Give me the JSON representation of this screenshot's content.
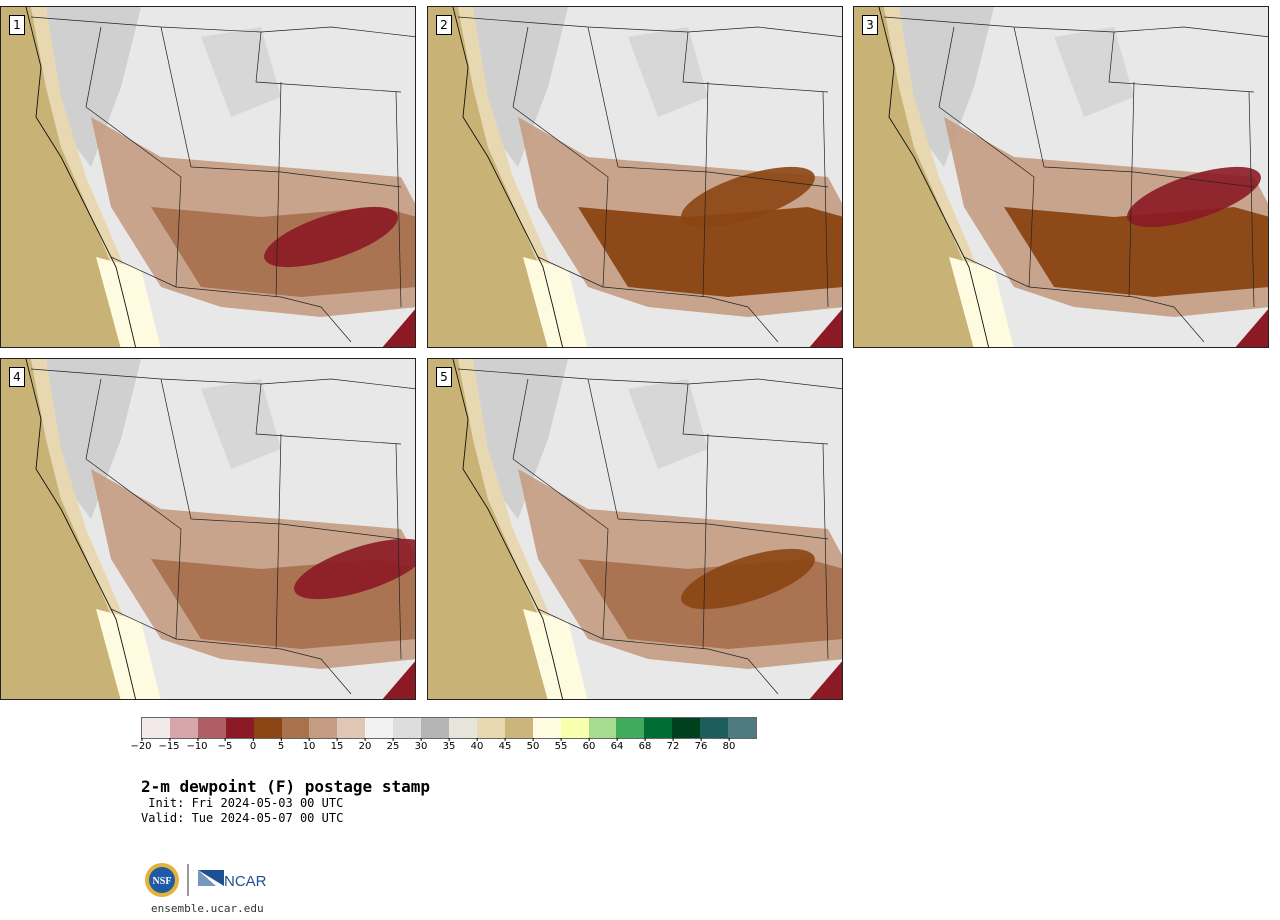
{
  "panels": [
    {
      "label": "1"
    },
    {
      "label": "2"
    },
    {
      "label": "3"
    },
    {
      "label": "4"
    },
    {
      "label": "5"
    }
  ],
  "colorbar": {
    "colors": [
      "#f4e9ea",
      "#d6a6aa",
      "#b05e66",
      "#8b1a24",
      "#8b4513",
      "#a9714e",
      "#c49c82",
      "#dfc6b5",
      "#f2f2f2",
      "#dddddd",
      "#b5b5b5",
      "#e6e5dc",
      "#e7d8b2",
      "#cbb57a",
      "#fffbe0",
      "#f8ffad",
      "#a5dc8e",
      "#40ab5d",
      "#006e34",
      "#00411d",
      "#1b5e5a",
      "#4f7a80"
    ],
    "ticks": [
      "-20",
      "-15",
      "-10",
      "-5",
      "0",
      "5",
      "10",
      "15",
      "20",
      "25",
      "30",
      "35",
      "40",
      "45",
      "50",
      "55",
      "60",
      "64",
      "68",
      "72",
      "76",
      "80"
    ]
  },
  "title": "2-m dewpoint (F) postage stamp",
  "init": " Init: Fri 2024-05-03 00 UTC",
  "valid": "Valid: Tue 2024-05-07 00 UTC",
  "logos": {
    "nsf": "NSF",
    "ncar": "NCAR"
  },
  "url": "ensemble.ucar.edu",
  "colors": {
    "ocean": "#c9b276",
    "land_light": "#e8e8e8",
    "dry_brown": "#8b4513",
    "dark_red": "#8b1a24"
  }
}
